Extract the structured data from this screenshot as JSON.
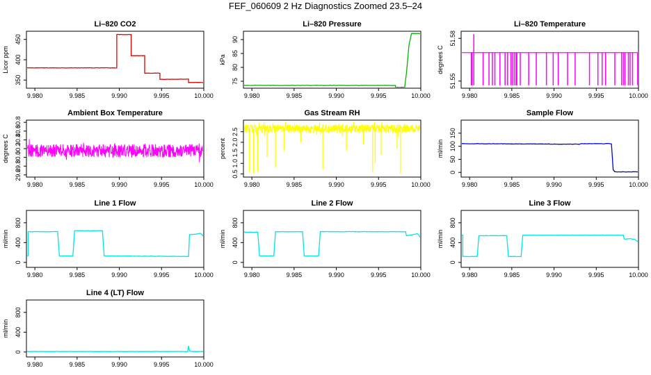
{
  "page_title": "FEF_060609  2 Hz Diagnostics Zoomed 23.5–24",
  "chart_data": [
    {
      "type": "line",
      "title": "Li–820 CO2",
      "xlabel": "",
      "ylabel": "Licor ppm",
      "color": "#e00000",
      "xlim": [
        9.979,
        10.0
      ],
      "ylim": [
        330,
        470
      ],
      "xticks": [
        "9.980",
        "9.985",
        "9.990",
        "9.995",
        "10.000"
      ],
      "yticks": [
        "350",
        "400",
        "450"
      ],
      "series": [
        {
          "x": [
            9.979,
            9.9897,
            9.9897,
            9.9914,
            9.9914,
            9.993,
            9.993,
            9.9948,
            9.9948,
            9.9982,
            9.9982,
            10.0
          ],
          "y": [
            380,
            380,
            462,
            462,
            410,
            410,
            367,
            367,
            352,
            352,
            344,
            344
          ]
        }
      ]
    },
    {
      "type": "line",
      "title": "Li–820 Pressure",
      "xlabel": "",
      "ylabel": "kPa",
      "color": "#00b400",
      "xlim": [
        9.979,
        10.0
      ],
      "ylim": [
        72.5,
        93
      ],
      "xticks": [
        "9.980",
        "9.985",
        "9.990",
        "9.995",
        "10.000"
      ],
      "yticks": [
        "75",
        "80",
        "85",
        "90"
      ],
      "series": [
        {
          "x": [
            9.979,
            9.997,
            9.997,
            9.9981,
            9.9983,
            9.9986,
            9.9989,
            10.0
          ],
          "y": [
            73.5,
            73.5,
            72.8,
            72.8,
            78,
            88,
            92.2,
            92.2
          ]
        }
      ]
    },
    {
      "type": "line",
      "title": "Li–820 Temperature",
      "xlabel": "",
      "ylabel": "degrees C",
      "color": "#ff00ff",
      "xlim": [
        9.979,
        10.0
      ],
      "ylim": [
        51.545,
        51.585
      ],
      "xticks": [
        "9.980",
        "9.985",
        "9.990",
        "9.995",
        "10.000"
      ],
      "yticks": [
        "51.55",
        "51.58"
      ],
      "baseline": 51.57,
      "spikes_up": [
        9.9805
      ],
      "spikes_down": [
        9.9802,
        9.9803,
        9.9805,
        9.9816,
        9.9823,
        9.9827,
        9.983,
        9.9836,
        9.9842,
        9.9845,
        9.9849,
        9.9851,
        9.9853,
        9.9855,
        9.9856,
        9.986,
        9.987,
        9.9879,
        9.9891,
        9.9899,
        9.9905,
        9.9916,
        9.9925,
        9.9942,
        9.9952,
        9.9957,
        9.9961,
        9.9972,
        9.998,
        9.9982,
        9.9984,
        9.9988,
        9.999,
        9.9993,
        9.9999
      ],
      "spike_low": 51.547,
      "spike_high": 51.583
    },
    {
      "type": "line",
      "title": "Ambient Box Temperature",
      "xlabel": "",
      "ylabel": "degrees C",
      "color": "#ff00ff",
      "xlim": [
        9.979,
        10.0
      ],
      "ylim": [
        29.55,
        30.85
      ],
      "xticks": [
        "9.980",
        "9.985",
        "9.990",
        "9.995",
        "10.000"
      ],
      "yticks": [
        "29.6",
        "29.8",
        "30.0",
        "30.2",
        "30.4",
        "30.6",
        "30.8"
      ],
      "noise": {
        "center": 30.15,
        "amplitude": 0.15,
        "min": 29.6,
        "max": 30.8
      }
    },
    {
      "type": "line",
      "title": "Gas Stream RH",
      "xlabel": "",
      "ylabel": "percent",
      "color": "#ffff00",
      "xlim": [
        9.979,
        10.0
      ],
      "ylim": [
        0.35,
        3.05
      ],
      "xticks": [
        "9.980",
        "9.985",
        "9.990",
        "9.995",
        "10.000"
      ],
      "yticks": [
        "0.5",
        "1.0",
        "1.5",
        "2.0",
        "2.5"
      ],
      "noise": {
        "center": 2.65,
        "amplitude": 0.2,
        "min": 0.5,
        "max": 2.95
      },
      "dips": [
        [
          9.9797,
          0.6
        ],
        [
          9.9802,
          0.5
        ],
        [
          9.9807,
          0.6
        ],
        [
          9.9818,
          1.3
        ],
        [
          9.9828,
          0.8
        ],
        [
          9.9838,
          1.6
        ],
        [
          9.9858,
          2.0
        ],
        [
          9.9884,
          0.7
        ],
        [
          9.9912,
          1.6
        ],
        [
          9.9932,
          1.9
        ],
        [
          9.9943,
          0.6
        ],
        [
          9.9946,
          1.0
        ],
        [
          9.9953,
          1.4
        ],
        [
          9.9972,
          1.7
        ],
        [
          9.9976,
          0.5
        ]
      ]
    },
    {
      "type": "line",
      "title": "Sample Flow",
      "xlabel": "",
      "ylabel": "ml/min",
      "color": "#0000dd",
      "xlim": [
        9.979,
        10.0
      ],
      "ylim": [
        -18,
        200
      ],
      "xticks": [
        "9.980",
        "9.985",
        "9.990",
        "9.995",
        "10.000"
      ],
      "yticks": [
        "0",
        "50",
        "100",
        "150"
      ],
      "series": [
        {
          "x": [
            9.979,
            9.993,
            9.9932,
            9.9968,
            9.997,
            9.9972,
            10.0
          ],
          "y": [
            110,
            108,
            110,
            110,
            10,
            2,
            2
          ]
        }
      ]
    },
    {
      "type": "line",
      "title": "Line 1 Flow",
      "xlabel": "",
      "ylabel": "ml/min",
      "color": "#00e5e5",
      "xlim": [
        9.979,
        10.0
      ],
      "ylim": [
        -100,
        1050
      ],
      "xticks": [
        "9.980",
        "9.985",
        "9.990",
        "9.995",
        "10.000"
      ],
      "yticks": [
        "0",
        "400",
        "800"
      ],
      "series": [
        {
          "x": [
            9.979,
            9.9792,
            9.9792,
            9.9827,
            9.9829,
            9.9845,
            9.9847,
            9.988,
            9.9882,
            9.9982,
            9.9983,
            9.999,
            9.9996,
            10.0
          ],
          "y": [
            130,
            130,
            620,
            620,
            130,
            130,
            640,
            640,
            130,
            120,
            560,
            570,
            590,
            520
          ]
        }
      ]
    },
    {
      "type": "line",
      "title": "Line 2 Flow",
      "xlabel": "",
      "ylabel": "ml/min",
      "color": "#00e5e5",
      "xlim": [
        9.979,
        10.0
      ],
      "ylim": [
        -100,
        1050
      ],
      "xticks": [
        "9.980",
        "9.985",
        "9.990",
        "9.995",
        "10.000"
      ],
      "yticks": [
        "0",
        "400",
        "800"
      ],
      "series": [
        {
          "x": [
            9.979,
            9.9807,
            9.9809,
            9.9826,
            9.9828,
            9.986,
            9.9862,
            9.9879,
            9.9881,
            9.9982,
            9.9983,
            9.999,
            9.9996,
            10.0
          ],
          "y": [
            610,
            610,
            130,
            130,
            620,
            620,
            130,
            130,
            620,
            620,
            540,
            560,
            580,
            500
          ]
        }
      ]
    },
    {
      "type": "line",
      "title": "Line 3 Flow",
      "xlabel": "",
      "ylabel": "ml/min",
      "color": "#00e5e5",
      "xlim": [
        9.979,
        10.0
      ],
      "ylim": [
        -100,
        1050
      ],
      "xticks": [
        "9.980",
        "9.985",
        "9.990",
        "9.995",
        "10.000"
      ],
      "yticks": [
        "0",
        "400",
        "800"
      ],
      "series": [
        {
          "x": [
            9.979,
            9.9792,
            9.9792,
            9.9809,
            9.9811,
            9.9844,
            9.9846,
            9.9861,
            9.9863,
            9.9982,
            9.9983,
            9.999,
            9.9996,
            10.0
          ],
          "y": [
            550,
            550,
            120,
            120,
            540,
            540,
            120,
            120,
            550,
            550,
            470,
            480,
            460,
            410
          ]
        }
      ]
    },
    {
      "type": "line",
      "title": "Line 4 (LT) Flow",
      "xlabel": "",
      "ylabel": "ml/min",
      "color": "#00e5e5",
      "xlim": [
        9.979,
        10.0
      ],
      "ylim": [
        -100,
        1050
      ],
      "xticks": [
        "9.980",
        "9.985",
        "9.990",
        "9.995",
        "10.000"
      ],
      "yticks": [
        "0",
        "400",
        "800"
      ],
      "series": [
        {
          "x": [
            9.979,
            9.9981,
            9.9982,
            9.9983,
            9.9984,
            10.0
          ],
          "y": [
            10,
            10,
            120,
            30,
            10,
            10
          ]
        }
      ]
    }
  ]
}
